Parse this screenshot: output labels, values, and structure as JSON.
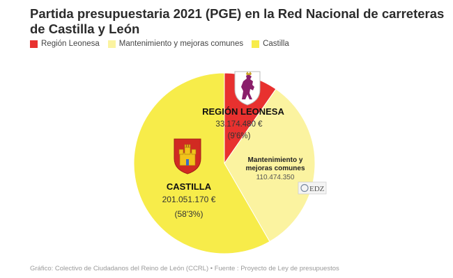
{
  "title": "Partida presupuestaria 2021 (PGE) en la Red Nacional de carreteras de Castilla y León",
  "legend": [
    {
      "label": "Región Leonesa",
      "color": "#e8312f"
    },
    {
      "label": "Mantenimiento y mejoras comunes",
      "color": "#fbf3a0"
    },
    {
      "label": "Castilla",
      "color": "#f7ec4a"
    }
  ],
  "chart_data": {
    "type": "pie",
    "title": "Partida presupuestaria 2021 (PGE) en la Red Nacional de carreteras de Castilla y León",
    "categories": [
      "Región Leonesa",
      "Mantenimiento y mejoras comunes",
      "Castilla"
    ],
    "values": [
      33174480,
      110474350,
      201051170
    ],
    "colors": [
      "#e8312f",
      "#fbf3a0",
      "#f7ec4a"
    ],
    "legend_position": "top-left",
    "labels": [
      {
        "name": "REGIÓN LEONESA",
        "value": "33.174.480 €",
        "percent": "(9'6%)"
      },
      {
        "name_line1": "Mantenimiento y",
        "name_line2": "mejoras comunes",
        "value": "110.474.350"
      },
      {
        "name": "CASTILLA",
        "value": "201.051.170 €",
        "percent": "(58'3%)"
      }
    ]
  },
  "watermark": "EDZ",
  "footer": "Gráfico: Colectivo de Ciudadanos del Reino de León (CCRL) • Fuente : Proyecto de Ley de presupuestos"
}
